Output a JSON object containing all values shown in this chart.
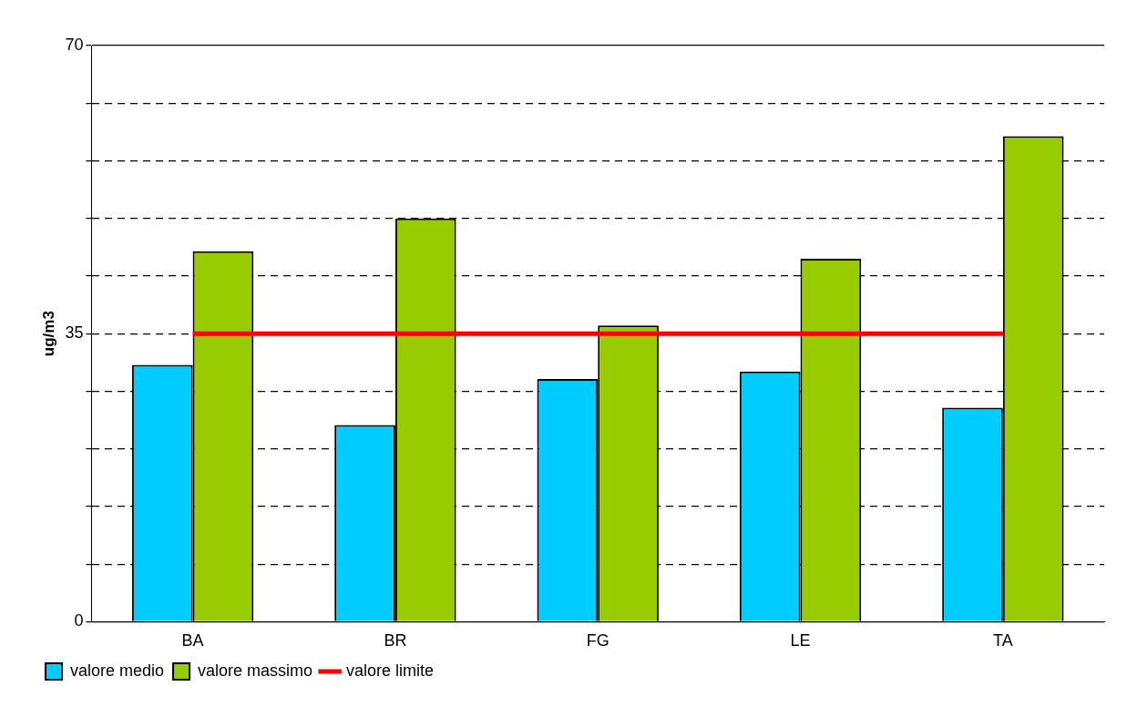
{
  "chart_data": {
    "type": "bar",
    "ylabel": "ug/m3",
    "categories": [
      "BA",
      "BR",
      "FG",
      "LE",
      "TA"
    ],
    "series": [
      {
        "name": "valore medio",
        "color": "#00ccff",
        "values": [
          31.2,
          23.9,
          29.5,
          30.4,
          26.0
        ]
      },
      {
        "name": "valore massimo",
        "color": "#99cc00",
        "values": [
          45.0,
          49.0,
          36.0,
          44.1,
          59.0
        ]
      },
      {
        "name": "valore limite",
        "type": "line",
        "color": "#ff0000",
        "values": [
          35,
          35,
          35,
          35,
          35
        ]
      }
    ],
    "ylim": [
      0,
      70
    ],
    "yticks": [
      0,
      {
        "value": 7,
        "label": null
      },
      {
        "value": 14,
        "label": null
      },
      {
        "value": 21,
        "label": null
      },
      {
        "value": 28,
        "label": null
      },
      35,
      {
        "value": 42,
        "label": null
      },
      {
        "value": 49,
        "label": null
      },
      {
        "value": 56,
        "label": null
      },
      {
        "value": 63,
        "label": null
      },
      70
    ],
    "grid": "y",
    "legend": "bottom",
    "marker": "none"
  }
}
